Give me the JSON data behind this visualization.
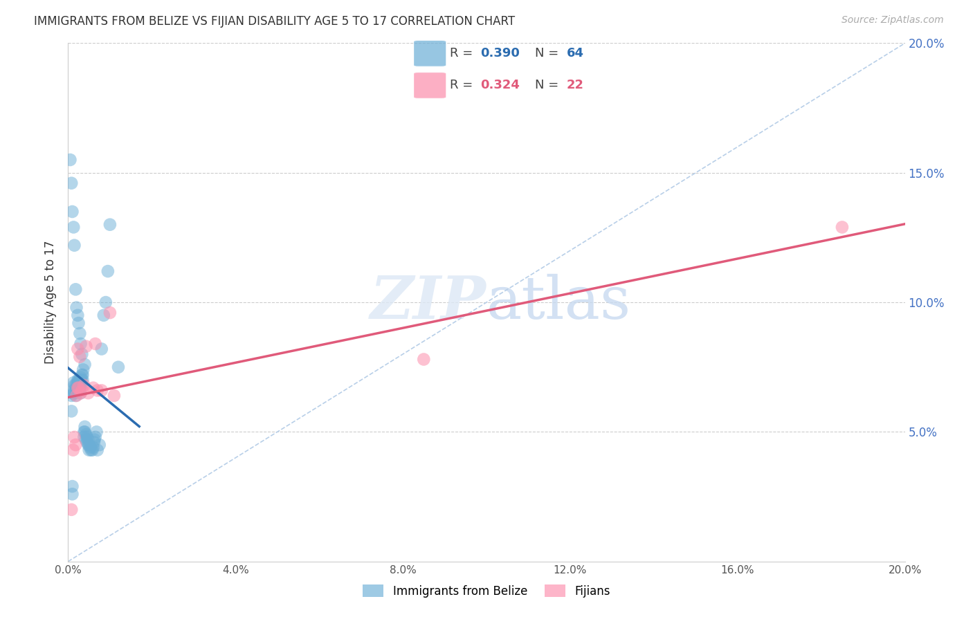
{
  "title": "IMMIGRANTS FROM BELIZE VS FIJIAN DISABILITY AGE 5 TO 17 CORRELATION CHART",
  "source": "Source: ZipAtlas.com",
  "ylabel": "Disability Age 5 to 17",
  "xlim": [
    0.0,
    0.2
  ],
  "ylim": [
    0.0,
    0.2
  ],
  "xticks": [
    0.0,
    0.04,
    0.08,
    0.12,
    0.16,
    0.2
  ],
  "yticks": [
    0.05,
    0.1,
    0.15,
    0.2
  ],
  "ytick_labels": [
    "5.0%",
    "10.0%",
    "15.0%",
    "20.0%"
  ],
  "xtick_labels": [
    "0.0%",
    "4.0%",
    "8.0%",
    "12.0%",
    "16.0%",
    "20.0%"
  ],
  "belize_R": 0.39,
  "belize_N": 64,
  "fijian_R": 0.324,
  "fijian_N": 22,
  "belize_color": "#6baed6",
  "fijian_color": "#fc8eac",
  "belize_line_color": "#2b6cb0",
  "fijian_line_color": "#e05a7a",
  "diagonal_color": "#b8cfe8",
  "background_color": "#ffffff",
  "belize_points_x": [
    0.0008,
    0.0008,
    0.001,
    0.001,
    0.0012,
    0.0013,
    0.0013,
    0.0015,
    0.0015,
    0.0018,
    0.0018,
    0.002,
    0.002,
    0.0022,
    0.0022,
    0.0022,
    0.0023,
    0.0023,
    0.0025,
    0.0025,
    0.0025,
    0.0026,
    0.0026,
    0.0027,
    0.0027,
    0.0028,
    0.0028,
    0.003,
    0.003,
    0.003,
    0.0032,
    0.0032,
    0.0033,
    0.0035,
    0.0035,
    0.0036,
    0.0038,
    0.0038,
    0.004,
    0.004,
    0.0042,
    0.0043,
    0.0045,
    0.0045,
    0.0048,
    0.0048,
    0.005,
    0.005,
    0.0053,
    0.0055,
    0.0058,
    0.006,
    0.0062,
    0.0063,
    0.0065,
    0.0068,
    0.007,
    0.0075,
    0.008,
    0.0085,
    0.009,
    0.0095,
    0.01,
    0.012
  ],
  "belize_points_y": [
    0.064,
    0.058,
    0.029,
    0.026,
    0.065,
    0.066,
    0.069,
    0.065,
    0.068,
    0.064,
    0.068,
    0.067,
    0.066,
    0.068,
    0.066,
    0.069,
    0.066,
    0.07,
    0.068,
    0.066,
    0.07,
    0.068,
    0.066,
    0.069,
    0.066,
    0.07,
    0.068,
    0.065,
    0.068,
    0.071,
    0.068,
    0.07,
    0.072,
    0.07,
    0.072,
    0.074,
    0.05,
    0.048,
    0.05,
    0.052,
    0.047,
    0.049,
    0.048,
    0.046,
    0.045,
    0.047,
    0.043,
    0.045,
    0.044,
    0.043,
    0.043,
    0.044,
    0.046,
    0.047,
    0.048,
    0.05,
    0.043,
    0.045,
    0.082,
    0.095,
    0.1,
    0.112,
    0.13,
    0.075
  ],
  "belize_points_y_high": [
    0.155,
    0.146,
    0.135,
    0.129,
    0.122,
    0.105,
    0.098,
    0.095,
    0.092,
    0.088,
    0.084,
    0.08,
    0.076
  ],
  "belize_points_x_high": [
    0.0005,
    0.0008,
    0.001,
    0.0013,
    0.0015,
    0.0018,
    0.002,
    0.0023,
    0.0025,
    0.0028,
    0.003,
    0.0033,
    0.004
  ],
  "fijian_points_x": [
    0.0008,
    0.0012,
    0.0015,
    0.0018,
    0.002,
    0.0023,
    0.0023,
    0.0025,
    0.0028,
    0.003,
    0.0033,
    0.0038,
    0.0043,
    0.0048,
    0.006,
    0.0065,
    0.007,
    0.008,
    0.01,
    0.011,
    0.085,
    0.185
  ],
  "fijian_points_y": [
    0.02,
    0.043,
    0.048,
    0.045,
    0.064,
    0.067,
    0.082,
    0.067,
    0.079,
    0.065,
    0.066,
    0.068,
    0.083,
    0.065,
    0.067,
    0.084,
    0.066,
    0.066,
    0.096,
    0.064,
    0.078,
    0.129
  ],
  "belize_line_x": [
    0.0,
    0.017
  ],
  "fijian_line_x": [
    0.0,
    0.2
  ]
}
